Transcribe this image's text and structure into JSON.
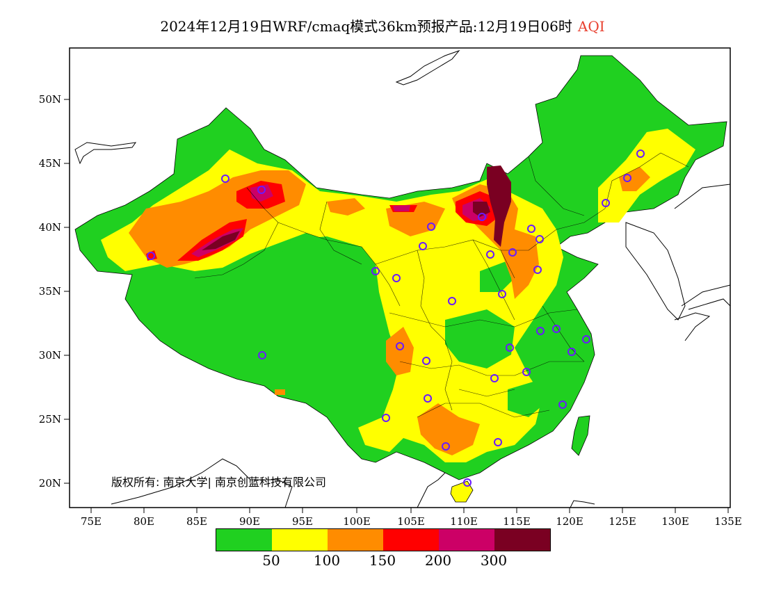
{
  "title": {
    "main": "2024年12月19日WRF/cmaq模式36km预报产品:12月19日06时",
    "highlight": "AQI"
  },
  "map": {
    "lat_labels": [
      "50N",
      "45N",
      "40N",
      "35N",
      "30N",
      "25N",
      "20N"
    ],
    "lon_labels": [
      "75E",
      "80E",
      "85E",
      "90E",
      "95E",
      "100E",
      "105E",
      "110E",
      "115E",
      "120E",
      "125E",
      "130E",
      "135E"
    ],
    "copyright": "版权所有: 南京大学| 南京创蓝科技有限公司"
  },
  "legend": {
    "colors": [
      "#20d020",
      "#ffff00",
      "#ff8c00",
      "#ff0000",
      "#cc0066",
      "#7a0022"
    ],
    "ticks": [
      "50",
      "100",
      "150",
      "200",
      "300"
    ]
  }
}
